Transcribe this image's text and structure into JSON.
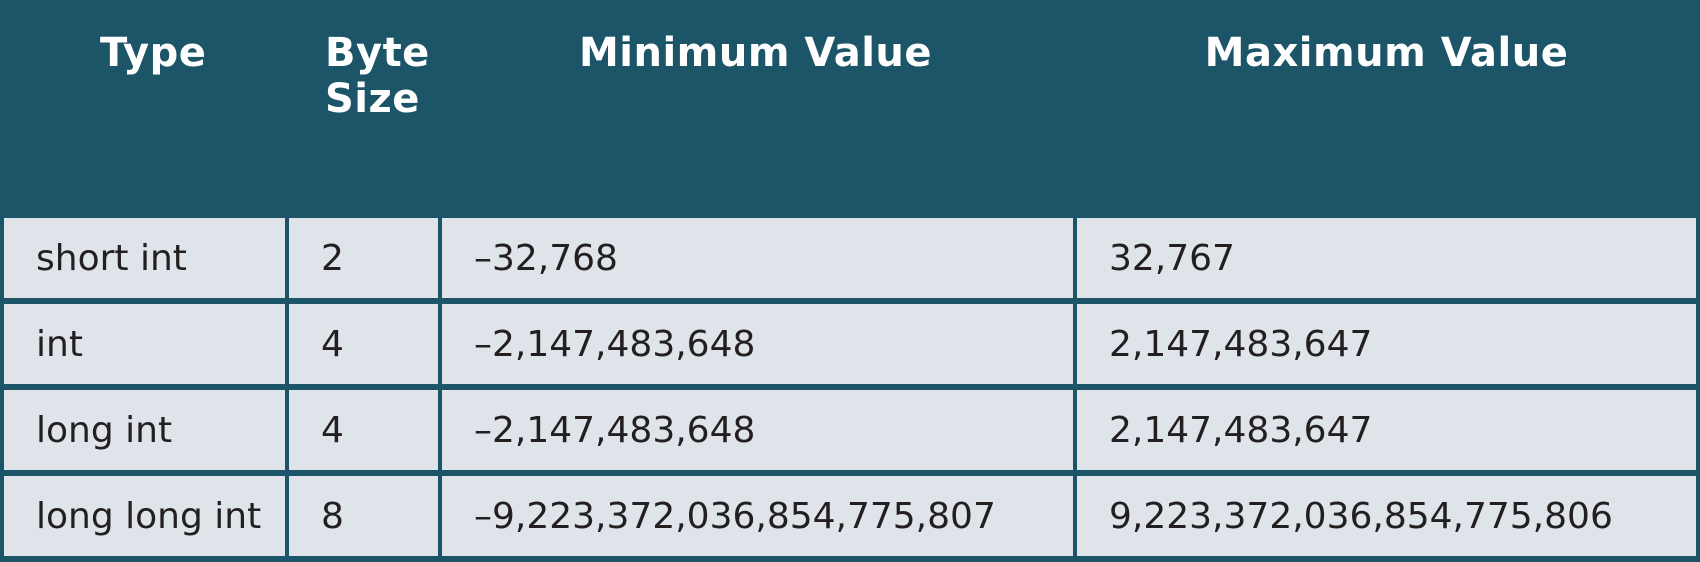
{
  "colors": {
    "header_bg": "#1d5568",
    "cell_bg": "#dfe4ea",
    "header_text": "#ffffff",
    "cell_text": "#231f20"
  },
  "table": {
    "headers": {
      "type": "Type",
      "byte_size_line1": "Byte",
      "byte_size_line2": "Size",
      "minimum": "Minimum Value",
      "maximum": "Maximum Value"
    },
    "rows": [
      {
        "type": "short int",
        "bytes": "2",
        "min": "–32,768",
        "max": "32,767"
      },
      {
        "type": "int",
        "bytes": "4",
        "min": "–2,147,483,648",
        "max": "2,147,483,647"
      },
      {
        "type": "long int",
        "bytes": "4",
        "min": "–2,147,483,648",
        "max": "2,147,483,647"
      },
      {
        "type": "long long int",
        "bytes": "8",
        "min": "–9,223,372,036,854,775,807",
        "max": "9,223,372,036,854,775,806"
      }
    ]
  }
}
